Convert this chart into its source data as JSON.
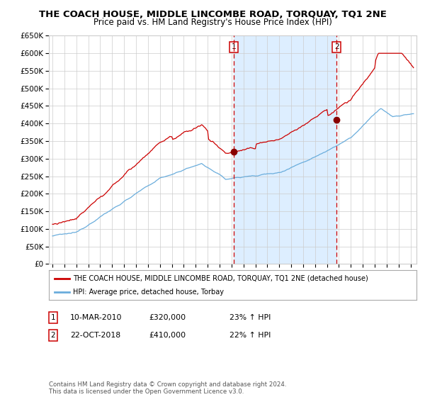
{
  "title": "THE COACH HOUSE, MIDDLE LINCOMBE ROAD, TORQUAY, TQ1 2NE",
  "subtitle": "Price paid vs. HM Land Registry's House Price Index (HPI)",
  "legend_line1": "THE COACH HOUSE, MIDDLE LINCOMBE ROAD, TORQUAY, TQ1 2NE (detached house)",
  "legend_line2": "HPI: Average price, detached house, Torbay",
  "annotation1_date": "10-MAR-2010",
  "annotation1_price": "£320,000",
  "annotation1_hpi": "23% ↑ HPI",
  "annotation2_date": "22-OCT-2018",
  "annotation2_price": "£410,000",
  "annotation2_hpi": "22% ↑ HPI",
  "event1_year": 2010.19,
  "event2_year": 2018.81,
  "event1_value": 320000,
  "event2_value": 410000,
  "ylabel_ticks": [
    "£0",
    "£50K",
    "£100K",
    "£150K",
    "£200K",
    "£250K",
    "£300K",
    "£350K",
    "£400K",
    "£450K",
    "£500K",
    "£550K",
    "£600K",
    "£650K"
  ],
  "ylabel_vals": [
    0,
    50000,
    100000,
    150000,
    200000,
    250000,
    300000,
    350000,
    400000,
    450000,
    500000,
    550000,
    600000,
    650000
  ],
  "xmin": 1994.7,
  "xmax": 2025.5,
  "ymin": 0,
  "ymax": 650000,
  "red_color": "#cc0000",
  "blue_color": "#6aaddc",
  "shade_color": "#ddeeff",
  "background_color": "#ffffff",
  "grid_color": "#cccccc",
  "footnote": "Contains HM Land Registry data © Crown copyright and database right 2024.\nThis data is licensed under the Open Government Licence v3.0.",
  "title_fontsize": 9.5,
  "subtitle_fontsize": 8.5
}
